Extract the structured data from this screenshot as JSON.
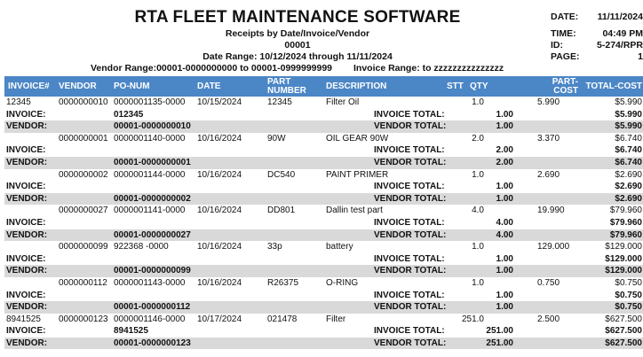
{
  "report": {
    "title": "RTA FLEET MAINTENANCE SOFTWARE",
    "subtitle": "Receipts by Date/Invoice/Vendor",
    "code": "00001",
    "date_range": "Date Range: 10/12/2024 through 11/11/2024",
    "vendor_range": "Vendor Range:00001-0000000000 to 00001-0999999999",
    "invoice_range": "Invoice Range: to zzzzzzzzzzzzzzz"
  },
  "meta": {
    "date_label": "DATE:",
    "date_value": "11/11/2024",
    "time_label": "TIME:",
    "time_value": "04:49 PM",
    "id_label": "ID:",
    "id_value": "5-274/RPR",
    "page_label": "PAGE:",
    "page_value": "1"
  },
  "columns": {
    "invoice": "INVOICE#",
    "vendor": "VENDOR",
    "po": "PO-NUM",
    "date": "DATE",
    "part": "PART NUMBER",
    "desc": "DESCRIPTION",
    "stt": "STT",
    "qty": "QTY",
    "cost": "PART-COST",
    "total": "TOTAL-COST"
  },
  "labels": {
    "invoice": "INVOICE:",
    "vendor": "VENDOR:",
    "invoice_total": "INVOICE TOTAL:",
    "vendor_total": "VENDOR TOTAL:"
  },
  "groups": [
    {
      "invoice": "12345",
      "vendor": "0000000010",
      "po": "0000001135-0000",
      "date": "10/15/2024",
      "part": "12345",
      "desc": "Filter Oil",
      "qty": "1.0",
      "cost": "5.990",
      "total": "$5.990",
      "inv_id": "012345",
      "inv_qty": "1.00",
      "inv_total": "$5.990",
      "vendor_id": "00001-0000000010",
      "vnd_qty": "1.00",
      "vnd_total": "$5.990"
    },
    {
      "invoice": "",
      "vendor": "0000000001",
      "po": "0000001140-0000",
      "date": "10/16/2024",
      "part": "90W",
      "desc": "OIL GEAR 90W",
      "qty": "2.0",
      "cost": "3.370",
      "total": "$6.740",
      "inv_id": "",
      "inv_qty": "2.00",
      "inv_total": "$6.740",
      "vendor_id": "00001-0000000001",
      "vnd_qty": "2.00",
      "vnd_total": "$6.740"
    },
    {
      "invoice": "",
      "vendor": "0000000002",
      "po": "0000001144-0000",
      "date": "10/16/2024",
      "part": "DC540",
      "desc": "PAINT PRIMER",
      "qty": "1.0",
      "cost": "2.690",
      "total": "$2.690",
      "inv_id": "",
      "inv_qty": "1.00",
      "inv_total": "$2.690",
      "vendor_id": "00001-0000000002",
      "vnd_qty": "1.00",
      "vnd_total": "$2.690"
    },
    {
      "invoice": "",
      "vendor": "0000000027",
      "po": "0000001141-0000",
      "date": "10/16/2024",
      "part": "DD801",
      "desc": "Dallin test part",
      "qty": "4.0",
      "cost": "19.990",
      "total": "$79.960",
      "inv_id": "",
      "inv_qty": "4.00",
      "inv_total": "$79.960",
      "vendor_id": "00001-0000000027",
      "vnd_qty": "4.00",
      "vnd_total": "$79.960"
    },
    {
      "invoice": "",
      "vendor": "0000000099",
      "po": "922368   -0000",
      "date": "10/16/2024",
      "part": "33p",
      "desc": "battery",
      "qty": "1.0",
      "cost": "129.000",
      "total": "$129.000",
      "inv_id": "",
      "inv_qty": "1.00",
      "inv_total": "$129.000",
      "vendor_id": "00001-0000000099",
      "vnd_qty": "1.00",
      "vnd_total": "$129.000"
    },
    {
      "invoice": "",
      "vendor": "0000000112",
      "po": "0000001143-0000",
      "date": "10/16/2024",
      "part": "R26375",
      "desc": "O-RING",
      "qty": "1.0",
      "cost": "0.750",
      "total": "$0.750",
      "inv_id": "",
      "inv_qty": "1.00",
      "inv_total": "$0.750",
      "vendor_id": "00001-0000000112",
      "vnd_qty": "1.00",
      "vnd_total": "$0.750"
    },
    {
      "invoice": "8941525",
      "vendor": "0000000123",
      "po": "0000001146-0000",
      "date": "10/17/2024",
      "part": "021478",
      "desc": "Filter",
      "qty": "251.0",
      "cost": "2.500",
      "total": "$627.500",
      "inv_id": "8941525",
      "inv_qty": "251.00",
      "inv_total": "$627.500",
      "vendor_id": "00001-0000000123",
      "vnd_qty": "251.00",
      "vnd_total": "$627.500"
    }
  ]
}
